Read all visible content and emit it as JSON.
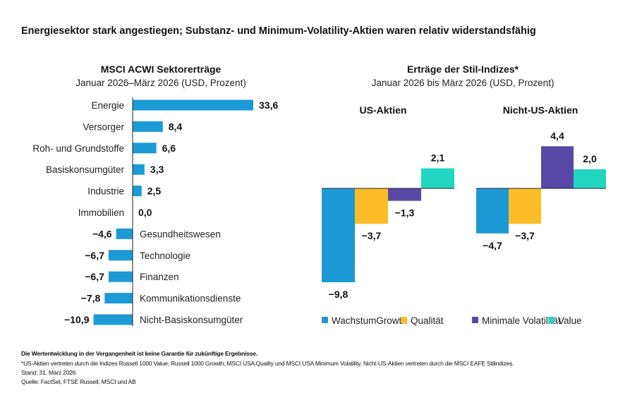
{
  "title": "Energiesektor stark angestiegen; Substanz- und Minimum-Volatility-Aktien waren relativ widerstandsfähig",
  "colors": {
    "blue": "#1b9ad6",
    "yellow": "#fbbd25",
    "purple": "#5848a6",
    "teal": "#22d6c2"
  },
  "chart_data": [
    {
      "type": "bar",
      "orientation": "horizontal",
      "title": "MSCI ACWI Sektorerträge",
      "subtitle": "Januar 2026–März 2026 (USD, Prozent)",
      "categories": [
        "Energie",
        "Versorger",
        "Roh- und Grundstoffe",
        "Basiskonsumgüter",
        "Industrie",
        "Immobilien",
        "Gesundheitswesen",
        "Technologie",
        "Finanzen",
        "Kommunikationsdienste",
        "Nicht-Basiskonsumgüter"
      ],
      "values": [
        33.6,
        8.4,
        6.6,
        3.3,
        2.5,
        0.0,
        -4.6,
        -6.7,
        -6.7,
        -7.8,
        -10.9
      ],
      "labels": [
        "33,6",
        "8,4",
        "6,6",
        "3,3",
        "2,5",
        "0,0",
        "−4,6",
        "−6,7",
        "−6,7",
        "−7,8",
        "−10,9"
      ]
    },
    {
      "type": "bar",
      "title": "Erträge der Stil-Indizes*",
      "subtitle": "Januar 2026 bis März 2026 (USD, Prozent)",
      "legend": "bottom",
      "groups": [
        "US-Aktien",
        "Nicht-US-Aktien"
      ],
      "series": [
        {
          "name": "WachstumGrowth",
          "values": [
            -9.8,
            -4.7
          ],
          "labels": [
            "−9,8",
            "−4,7"
          ]
        },
        {
          "name": "Qualität",
          "values": [
            -3.7,
            -3.7
          ],
          "labels": [
            "−3,7",
            "−3,7"
          ]
        },
        {
          "name": "Minimale Volatilität",
          "values": [
            -1.3,
            4.4
          ],
          "labels": [
            "−1,3",
            "4,4"
          ]
        },
        {
          "name": "Value",
          "values": [
            2.1,
            2.0
          ],
          "labels": [
            "2,1",
            "2,0"
          ]
        }
      ]
    }
  ],
  "footer": {
    "disclaimer": "Die Wertentwicklung in der Vergangenheit ist keine Garantie für zukünftige Ergebnisse.",
    "note": "*US-Aktien vertreten durch die Indizes Russell 1000 Value, Russell 1000 Growth, MSCI USA Quality und MSCI USA Minimum Volatility. Nicht-US-Aktien vertreten durch die MSCI EAFE Stilindizes.",
    "date": "Stand: 31. März 2026",
    "source": "Quelle: FactSet, FTSE Russell, MSCI und AB"
  }
}
